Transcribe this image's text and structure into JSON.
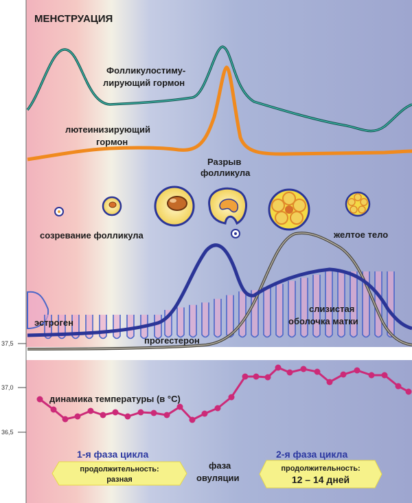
{
  "title": "МЕНСТРУАЦИЯ",
  "hormones": {
    "fsh_line1": "Фолликулостиму-",
    "fsh_line2": "лирующий гормон",
    "lh_line1": "лютеинизирующий",
    "lh_line2": "гормон"
  },
  "follicle": {
    "rupture_line1": "Разрыв",
    "rupture_line2": "фолликула",
    "maturation": "созревание фолликула",
    "corpus_luteum": "желтое тело"
  },
  "endometrium": {
    "estrogen": "эстроген",
    "progesterone": "прогестерон",
    "mucosa_line1": "слизистая",
    "mucosa_line2": "оболочка матки"
  },
  "temperature": {
    "label": "динамика температуры (в °С)",
    "ticks": [
      "37,5",
      "37,0",
      "36,5"
    ]
  },
  "phases": {
    "phase1_title": "1-я фаза цикла",
    "phase1_duration_label": "продолжительность:",
    "phase1_duration_value": "разная",
    "ovulation_line1": "фаза",
    "ovulation_line2": "овуляции",
    "phase2_title": "2-я фаза цикла",
    "phase2_duration_label": "продолжительность:",
    "phase2_duration_value": "12 – 14 дней"
  },
  "colors": {
    "fsh": "#2a8f86",
    "lh": "#f08a1e",
    "estrogen": "#2b3597",
    "progesterone": "#7d7a72",
    "temperature": "#cc2a78",
    "endometrium": "#4a66c8",
    "phase_title": "#2c38a0",
    "phase_box": "#f6f28a"
  }
}
